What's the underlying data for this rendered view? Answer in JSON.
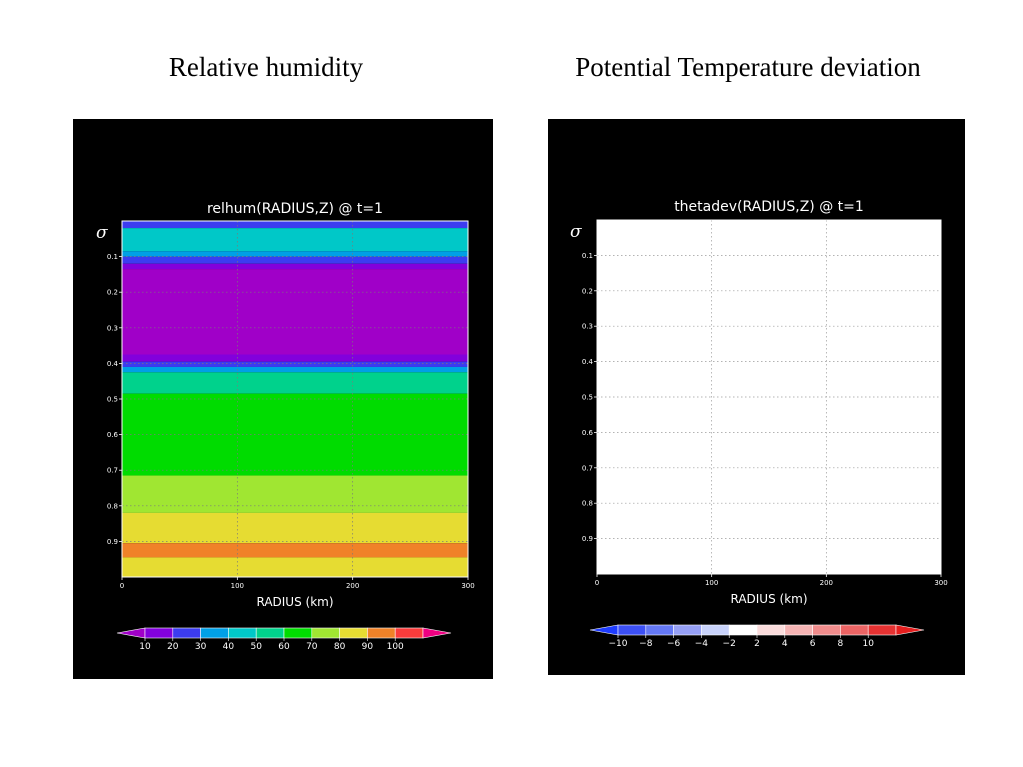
{
  "slide": {
    "left_title": "Relative humidity",
    "right_title": "Potential Temperature deviation"
  },
  "chart_data": [
    {
      "type": "heatmap",
      "title": "relhum(RADIUS,Z) @ t=1",
      "xlabel": "RADIUS (km)",
      "ylabel": "σ",
      "xlim": [
        0,
        300
      ],
      "ylim": [
        0,
        1
      ],
      "y_inverted": true,
      "x_ticks": [
        "0",
        "100",
        "200",
        "300"
      ],
      "y_ticks": [
        "0.1",
        "0.2",
        "0.3",
        "0.4",
        "0.5",
        "0.6",
        "0.7",
        "0.8",
        "0.9"
      ],
      "grid": true,
      "bands": [
        {
          "sigma_top": 0.0,
          "sigma_bottom": 0.02,
          "color": "#3c3cf0"
        },
        {
          "sigma_top": 0.02,
          "sigma_bottom": 0.085,
          "color": "#00c8c8"
        },
        {
          "sigma_top": 0.085,
          "sigma_bottom": 0.1,
          "color": "#00a0e6"
        },
        {
          "sigma_top": 0.1,
          "sigma_bottom": 0.12,
          "color": "#3c3cf0"
        },
        {
          "sigma_top": 0.12,
          "sigma_bottom": 0.135,
          "color": "#8200dc"
        },
        {
          "sigma_top": 0.135,
          "sigma_bottom": 0.375,
          "color": "#a000c8"
        },
        {
          "sigma_top": 0.375,
          "sigma_bottom": 0.395,
          "color": "#8200dc"
        },
        {
          "sigma_top": 0.395,
          "sigma_bottom": 0.41,
          "color": "#3c3cf0"
        },
        {
          "sigma_top": 0.41,
          "sigma_bottom": 0.425,
          "color": "#00a0e6"
        },
        {
          "sigma_top": 0.425,
          "sigma_bottom": 0.485,
          "color": "#00d28c"
        },
        {
          "sigma_top": 0.485,
          "sigma_bottom": 0.715,
          "color": "#00dc00"
        },
        {
          "sigma_top": 0.715,
          "sigma_bottom": 0.82,
          "color": "#a0e632"
        },
        {
          "sigma_top": 0.82,
          "sigma_bottom": 0.905,
          "color": "#e6dc32"
        },
        {
          "sigma_top": 0.905,
          "sigma_bottom": 0.945,
          "color": "#f08228"
        },
        {
          "sigma_top": 0.945,
          "sigma_bottom": 1.0,
          "color": "#e6dc32"
        }
      ],
      "colorbar": {
        "labels": [
          "10",
          "20",
          "30",
          "40",
          "50",
          "60",
          "70",
          "80",
          "90",
          "100"
        ],
        "colors": [
          "#a000c8",
          "#8200dc",
          "#3c3cf0",
          "#00a0e6",
          "#00c8c8",
          "#00d28c",
          "#00dc00",
          "#a0e632",
          "#e6dc32",
          "#f08228",
          "#fa3c3c",
          "#f00082"
        ]
      }
    },
    {
      "type": "heatmap",
      "title": "thetadev(RADIUS,Z) @ t=1",
      "xlabel": "RADIUS (km)",
      "ylabel": "σ",
      "xlim": [
        0,
        300
      ],
      "ylim": [
        0,
        1
      ],
      "y_inverted": true,
      "x_ticks": [
        "0",
        "100",
        "200",
        "300"
      ],
      "y_ticks": [
        "0.1",
        "0.2",
        "0.3",
        "0.4",
        "0.5",
        "0.6",
        "0.7",
        "0.8",
        "0.9"
      ],
      "grid": true,
      "bands": [
        {
          "sigma_top": 0.0,
          "sigma_bottom": 1.0,
          "color": "#ffffff"
        }
      ],
      "colorbar": {
        "labels": [
          "−10",
          "−8",
          "−6",
          "−4",
          "−2",
          "2",
          "4",
          "6",
          "8",
          "10"
        ],
        "colors": [
          "#1e3cff",
          "#3c50f5",
          "#6478f5",
          "#96a0f5",
          "#c8d2fa",
          "#ffffff",
          "#fadcdc",
          "#f5b4b4",
          "#f08c8c",
          "#eb6464",
          "#e63232",
          "#e61e1e"
        ]
      }
    }
  ]
}
